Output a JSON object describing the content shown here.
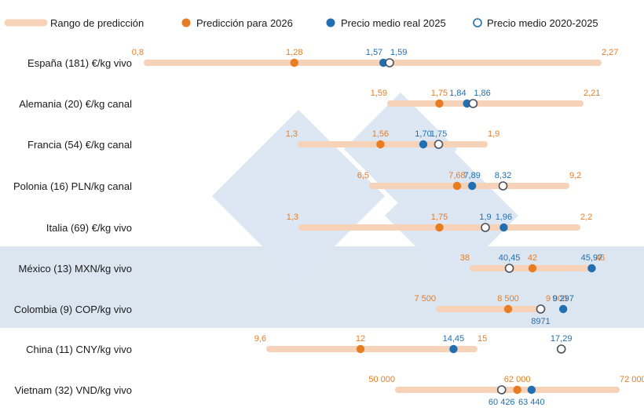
{
  "colors": {
    "range": "#f6d2b8",
    "prediction": "#e87c22",
    "actual2025": "#1f6fb2",
    "avg_stroke": "#4a4f5a",
    "band": "#dce6f1",
    "watermark": "#dde7f3",
    "label_text": "#1a1a1a"
  },
  "legend": {
    "range": "Rango de predicción",
    "prediction": "Predicción para 2026",
    "actual2025": "Precio medio real 2025",
    "avg": "Precio medio 2020-2025"
  },
  "watermark_icon": "logo-3tres3-icon",
  "chart_data": {
    "type": "range-dot",
    "rows": [
      {
        "label": "España (181) €/kg vivo",
        "min": 0.8,
        "max": 2.27,
        "pred": 1.28,
        "real2025": 1.57,
        "avg": 1.59,
        "t_min": "0,8",
        "t_max": "2,27",
        "t_pred": "1,28",
        "t_real": "1,57",
        "t_avg": "1,59",
        "band": false
      },
      {
        "label": "Alemania (20) €/kg canal",
        "min": 1.59,
        "max": 2.21,
        "pred": 1.75,
        "real2025": 1.84,
        "avg": 1.86,
        "t_min": "1,59",
        "t_max": "2,21",
        "t_pred": "1,75",
        "t_real": "1,84",
        "t_avg": "1,86",
        "band": false
      },
      {
        "label": "Francia (54) €/kg canal",
        "min": 1.3,
        "max": 1.9,
        "pred": 1.56,
        "real2025": 1.7,
        "avg": 1.75,
        "t_min": "1,3",
        "t_max": "1,9",
        "t_pred": "1,56",
        "t_real": "1,70",
        "t_avg": "1,75",
        "band": false
      },
      {
        "label": "Polonia (16) PLN/kg canal",
        "min": 6.5,
        "max": 9.2,
        "pred": 7.68,
        "real2025": 7.89,
        "avg": 8.32,
        "t_min": "6,5",
        "t_max": "9,2",
        "t_pred": "7,68",
        "t_real": "7,89",
        "t_avg": "8,32",
        "band": false
      },
      {
        "label": "Italia (69) €/kg vivo",
        "min": 1.3,
        "max": 2.2,
        "pred": 1.75,
        "real2025": 1.96,
        "avg": 1.9,
        "t_min": "1,3",
        "t_max": "2,2",
        "t_pred": "1,75",
        "t_real": "1,96",
        "t_avg": "1,9",
        "band": false
      },
      {
        "label": "México (13) MXN/kg vivo",
        "min": 38,
        "max": 46,
        "pred": 42,
        "real2025": 45.97,
        "avg": 40.45,
        "t_min": "38",
        "t_max": "46",
        "t_pred": "42",
        "t_real": "45,97",
        "t_avg": "40,45",
        "band": true
      },
      {
        "label": "Colombia (9) COP/kg vivo",
        "min": 7500,
        "max": 9000,
        "pred": 8500,
        "real2025": 9297,
        "avg": 8971,
        "t_min": "7 500",
        "t_max": "9 000",
        "t_pred": "8 500",
        "t_real": "9 297",
        "t_avg": "8971",
        "band": true
      },
      {
        "label": "China (11) CNY/kg vivo",
        "min": 9.6,
        "max": 15,
        "pred": 12,
        "real2025": 14.45,
        "avg": 17.29,
        "t_min": "9,6",
        "t_max": "15",
        "t_pred": "12",
        "t_real": "14,45",
        "t_avg": "17,29",
        "band": false
      },
      {
        "label": "Vietnam (32) VND/kg vivo",
        "min": 50000,
        "max": 72000,
        "pred": 62000,
        "real2025": 63440,
        "avg": 60426,
        "t_min": "50 000",
        "t_max": "72 000",
        "t_pred": "62 000",
        "t_real": "63 440",
        "t_avg": "60 426",
        "band": false
      }
    ]
  }
}
